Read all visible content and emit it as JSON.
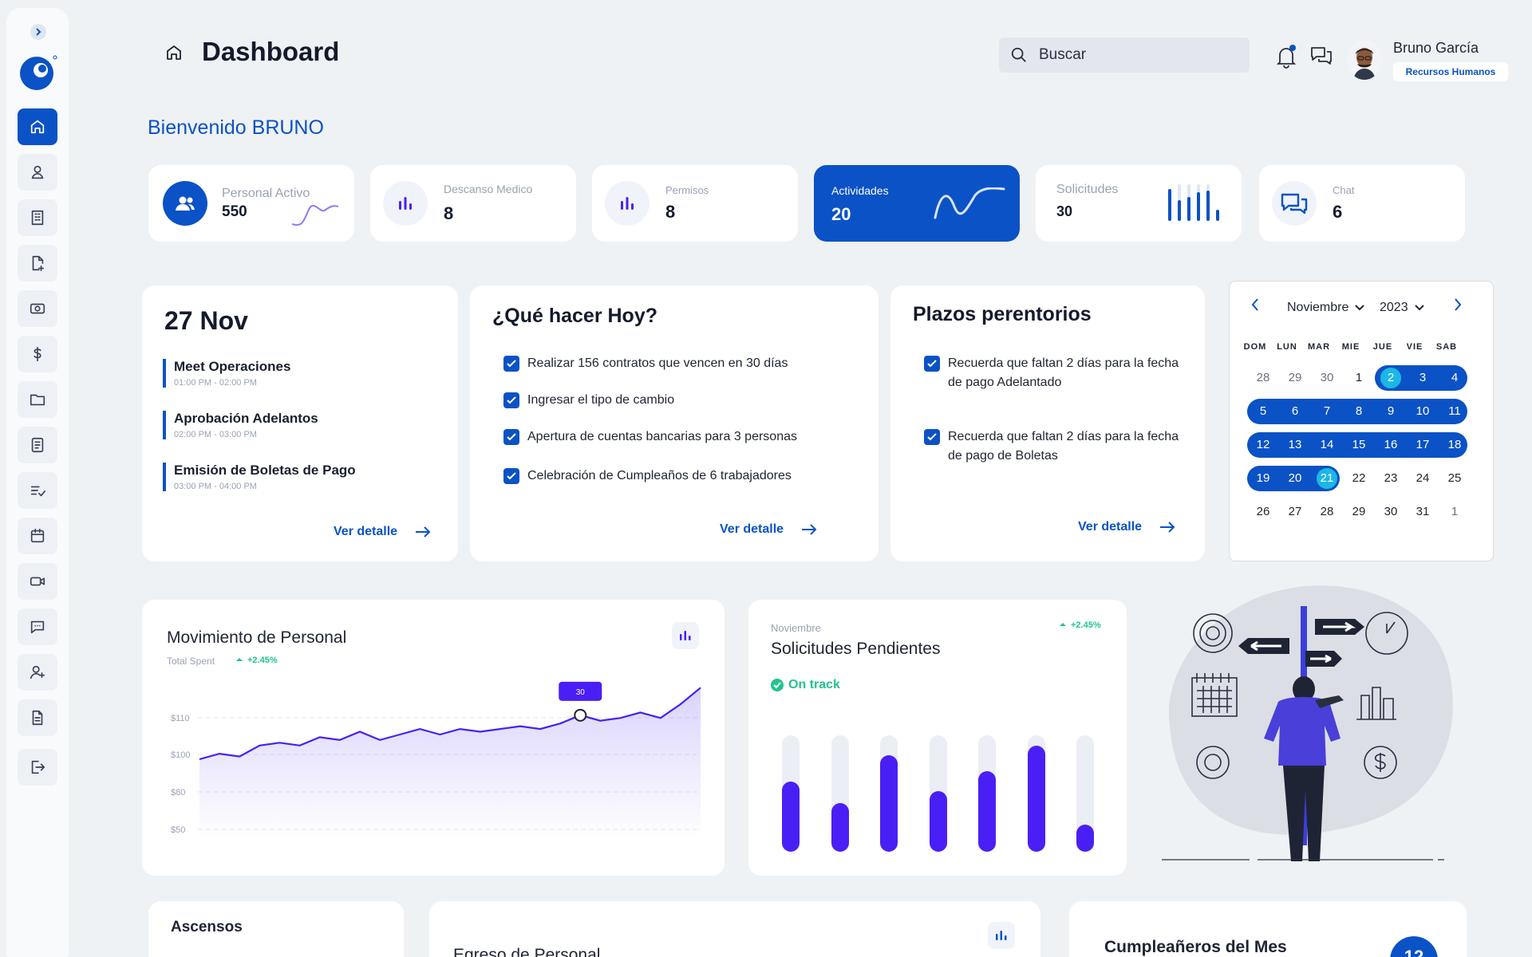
{
  "header": {
    "title": "Dashboard",
    "search_placeholder": "Buscar",
    "user_name": "Bruno García",
    "user_role": "Recursos Humanos"
  },
  "welcome": "Bienvenido BRUNO",
  "stats": [
    {
      "label": "Personal Activo",
      "value": "550"
    },
    {
      "label": "Descanso Medico",
      "value": "8"
    },
    {
      "label": "Permisos",
      "value": "8"
    },
    {
      "label": "Actividades",
      "value": "20"
    },
    {
      "label": "Solicitudes",
      "value": "30"
    },
    {
      "label": "Chat",
      "value": "6"
    }
  ],
  "agenda": {
    "date": "27 Nov",
    "events": [
      {
        "title": "Meet Operaciones",
        "time": "01:00 PM - 02:00 PM"
      },
      {
        "title": "Aprobación Adelantos",
        "time": "02:00 PM - 03:00 PM"
      },
      {
        "title": "Emisión de Boletas de Pago",
        "time": "03:00 PM - 04:00 PM"
      }
    ],
    "link": "Ver detalle"
  },
  "todo": {
    "title": "¿Qué hacer Hoy?",
    "items": [
      "Realizar 156 contratos que vencen en 30 días",
      "Ingresar el tipo de cambio",
      "Apertura de cuentas bancarias para 3 personas",
      "Celebración de Cumpleaños de 6 trabajadores"
    ],
    "link": "Ver detalle"
  },
  "deadlines": {
    "title": "Plazos perentorios",
    "items": [
      "Recuerda que faltan 2 días para la fecha de pago Adelantado",
      "Recuerda que faltan 2 días para la fecha de pago de Boletas"
    ],
    "link": "Ver detalle"
  },
  "calendar": {
    "month": "Noviembre",
    "year": "2023",
    "weekdays": [
      "DOM",
      "LUN",
      "MAR",
      "MIE",
      "JUE",
      "VIE",
      "SAB"
    ],
    "weeks": [
      [
        "28",
        "29",
        "30",
        "1",
        "2",
        "3",
        "4"
      ],
      [
        "5",
        "6",
        "7",
        "8",
        "9",
        "10",
        "11"
      ],
      [
        "12",
        "13",
        "14",
        "15",
        "16",
        "17",
        "18"
      ],
      [
        "19",
        "20",
        "21",
        "22",
        "23",
        "24",
        "25"
      ],
      [
        "26",
        "27",
        "28",
        "29",
        "30",
        "31",
        "1"
      ]
    ],
    "selected_range": [
      "2",
      "21"
    ],
    "highlighted": [
      "2",
      "21"
    ]
  },
  "movimiento": {
    "title": "Movimiento de Personal",
    "subtitle": "Total Spent",
    "delta": "+2.45%",
    "tooltip": "30"
  },
  "chart_data": {
    "type": "area",
    "title": "Movimiento de Personal",
    "y_tick_labels": [
      "$110",
      "$100",
      "$80",
      "$50"
    ],
    "y": [
      99,
      101,
      100,
      104,
      105,
      104,
      107,
      106,
      109,
      106,
      108,
      110,
      108,
      110,
      109,
      110,
      111,
      110,
      112,
      115,
      113,
      114,
      116,
      114,
      119,
      125
    ],
    "highlight_value": 30
  },
  "solicitudes": {
    "month": "Noviembre",
    "title": "Solicitudes Pendientes",
    "status": "On track",
    "delta": "+2.45%",
    "bars": [
      0.6,
      0.42,
      0.83,
      0.52,
      0.69,
      0.91,
      0.23
    ]
  },
  "bottom": {
    "ascensos": "Ascensos",
    "egreso": "Egreso de Personal",
    "cumple": "Cumpleañeros del Mes",
    "cumple_count": "12"
  },
  "colors": {
    "primary": "#0a52c6",
    "accent": "#4a1ff5",
    "success": "#22c38e"
  }
}
